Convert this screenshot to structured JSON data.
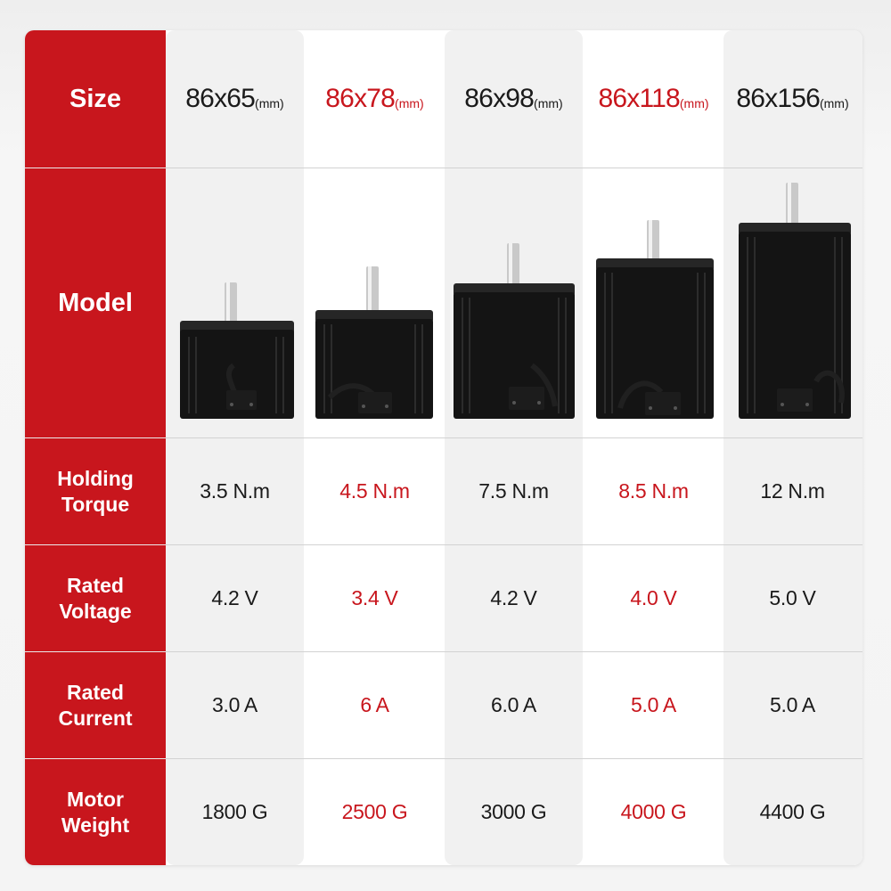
{
  "row_labels": {
    "size": "Size",
    "model": "Model",
    "holding_torque": [
      "Holding",
      "Torque"
    ],
    "rated_voltage": [
      "Rated",
      "Voltage"
    ],
    "rated_current": [
      "Rated",
      "Current"
    ],
    "motor_weight": [
      "Motor",
      "Weight"
    ]
  },
  "unit": "(mm)",
  "columns": [
    {
      "size": "86x65",
      "model_image": "stepper-motor-86x65",
      "holding_torque": "3.5 N.m",
      "rated_voltage": "4.2 V",
      "rated_current": "3.0 A",
      "motor_weight": "1800 G"
    },
    {
      "size": "86x78",
      "model_image": "stepper-motor-86x78",
      "holding_torque": "4.5 N.m",
      "rated_voltage": "3.4 V",
      "rated_current": "6 A",
      "motor_weight": "2500 G"
    },
    {
      "size": "86x98",
      "model_image": "stepper-motor-86x98",
      "holding_torque": "7.5 N.m",
      "rated_voltage": "4.2 V",
      "rated_current": "6.0 A",
      "motor_weight": "3000 G"
    },
    {
      "size": "86x118",
      "model_image": "stepper-motor-86x118",
      "holding_torque": "8.5 N.m",
      "rated_voltage": "4.0 V",
      "rated_current": "5.0 A",
      "motor_weight": "4000 G"
    },
    {
      "size": "86x156",
      "model_image": "stepper-motor-86x156",
      "holding_torque": "12 N.m",
      "rated_voltage": "5.0 V",
      "rated_current": "5.0 A",
      "motor_weight": "4400 G"
    }
  ],
  "colors": {
    "label_column": "#c8161d",
    "highlight_text": "#c8161d",
    "normal_text": "#1a1a1a",
    "alt_column": "#f1f1f1"
  }
}
